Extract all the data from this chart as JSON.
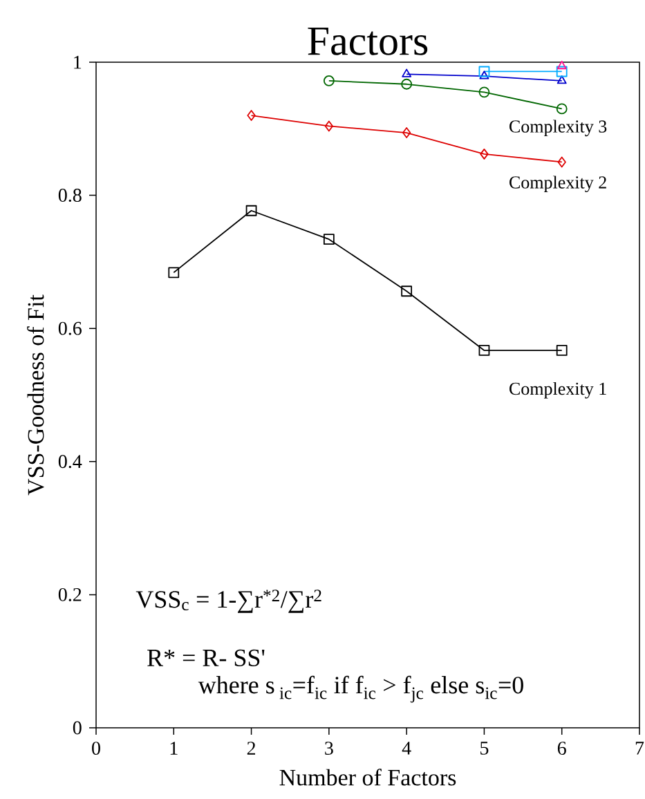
{
  "chart_data": {
    "type": "line",
    "title": "Factors",
    "xlabel": "Number of Factors",
    "ylabel": "VSS-Goodness of Fit",
    "xlim": [
      0,
      7
    ],
    "ylim": [
      0,
      1
    ],
    "xticks": [
      0,
      1,
      2,
      3,
      4,
      5,
      6,
      7
    ],
    "yticks": [
      0,
      0.2,
      0.4,
      0.6,
      0.8,
      1
    ],
    "grid": false,
    "line_style": "solid",
    "series": [
      {
        "color": "#000000",
        "marker": "square",
        "x": [
          1,
          2,
          3,
          4,
          5,
          6
        ],
        "values": [
          0.684,
          0.777,
          0.734,
          0.656,
          0.567,
          0.567
        ]
      },
      {
        "color": "#dd0000",
        "marker": "diamond",
        "x": [
          2,
          3,
          4,
          5,
          6
        ],
        "values": [
          0.92,
          0.904,
          0.894,
          0.862,
          0.85
        ]
      },
      {
        "color": "#006600",
        "marker": "circle",
        "x": [
          3,
          4,
          5,
          6
        ],
        "values": [
          0.972,
          0.967,
          0.955,
          0.93
        ]
      },
      {
        "color": "#0000cc",
        "marker": "triangle",
        "x": [
          4,
          5,
          6
        ],
        "values": [
          0.982,
          0.979,
          0.972
        ]
      },
      {
        "color": "#00aaff",
        "marker": "square",
        "x": [
          5,
          6
        ],
        "values": [
          0.986,
          0.986
        ]
      },
      {
        "color": "#ff1493",
        "marker": "triangle",
        "x": [
          6
        ],
        "values": [
          0.994
        ]
      }
    ],
    "annotations": [
      "Complexity 3",
      "Complexity 2",
      "Complexity 1",
      "VSS$_{c}$ = 1-∑r$^{*2}$/∑r$^{2}$",
      "R* = R- SS'",
      "where s$_{ ic}$=f$_{ic}$ if f$_{ic}$ > f$_{jc}$ else s$_{ic}$=0"
    ]
  }
}
